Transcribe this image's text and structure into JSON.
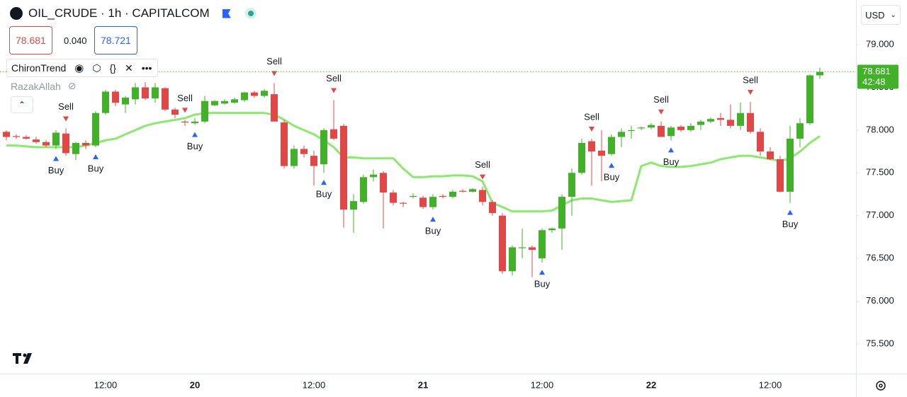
{
  "header": {
    "symbol": "OIL_CRUDE · 1h · CAPITALCOM",
    "bid": "78.681",
    "spread": "0.040",
    "ask": "78.721",
    "indicator": "ChironTrend",
    "indicator2": "RazakAllah",
    "currency": "USD",
    "countdown": "42:48"
  },
  "chart_data": {
    "type": "candlestick",
    "categories": [
      null,
      null,
      null,
      null,
      null,
      null,
      null,
      null,
      null,
      null,
      "12:00",
      null,
      null,
      null,
      null,
      null,
      null,
      null,
      null,
      "20",
      null,
      null,
      null,
      null,
      null,
      null,
      null,
      null,
      null,
      null,
      null,
      "12:00",
      null,
      null,
      null,
      null,
      null,
      null,
      null,
      null,
      null,
      null,
      "21",
      null,
      null,
      null,
      null,
      null,
      null,
      null,
      null,
      null,
      null,
      null,
      "12:00",
      null,
      null,
      null,
      null,
      null,
      null,
      null,
      null,
      null,
      null,
      "22",
      null,
      null,
      null,
      null,
      null,
      null,
      null,
      null,
      null,
      null,
      null,
      "12:00",
      null,
      null,
      null,
      null,
      null
    ],
    "ohlc": [
      [
        77.98,
        78.0,
        77.88,
        77.92
      ],
      [
        77.93,
        77.95,
        77.9,
        77.92
      ],
      [
        77.92,
        77.94,
        77.89,
        77.9
      ],
      [
        77.89,
        77.92,
        77.84,
        77.86
      ],
      [
        77.86,
        77.88,
        77.8,
        77.82
      ],
      [
        77.82,
        78.0,
        77.78,
        77.97
      ],
      [
        77.96,
        78.02,
        77.7,
        77.73
      ],
      [
        77.72,
        77.86,
        77.65,
        77.85
      ],
      [
        77.85,
        77.88,
        77.78,
        77.82
      ],
      [
        77.82,
        78.22,
        77.8,
        78.2
      ],
      [
        78.2,
        78.47,
        78.18,
        78.45
      ],
      [
        78.45,
        78.47,
        78.28,
        78.32
      ],
      [
        78.3,
        78.4,
        78.2,
        78.38
      ],
      [
        78.36,
        78.55,
        78.3,
        78.5
      ],
      [
        78.5,
        78.56,
        78.35,
        78.37
      ],
      [
        78.37,
        78.55,
        78.32,
        78.5
      ],
      [
        78.49,
        78.5,
        78.22,
        78.24
      ],
      [
        78.24,
        78.26,
        78.14,
        78.18
      ],
      [
        78.1,
        78.12,
        78.05,
        78.09
      ],
      [
        78.08,
        78.14,
        78.06,
        78.1
      ],
      [
        78.1,
        78.4,
        78.08,
        78.34
      ],
      [
        78.29,
        78.35,
        78.28,
        78.34
      ],
      [
        78.31,
        78.36,
        78.3,
        78.34
      ],
      [
        78.32,
        78.38,
        78.31,
        78.36
      ],
      [
        78.35,
        78.45,
        78.33,
        78.44
      ],
      [
        78.44,
        78.46,
        78.38,
        78.4
      ],
      [
        78.4,
        78.48,
        78.38,
        78.46
      ],
      [
        78.42,
        78.55,
        78.1,
        78.1
      ],
      [
        78.09,
        78.12,
        77.55,
        77.58
      ],
      [
        77.58,
        77.82,
        77.55,
        77.78
      ],
      [
        77.78,
        77.82,
        77.68,
        77.72
      ],
      [
        77.7,
        77.76,
        77.35,
        77.58
      ],
      [
        77.6,
        78.02,
        77.5,
        78.0
      ],
      [
        78.01,
        78.35,
        77.88,
        77.9
      ],
      [
        78.05,
        78.07,
        76.86,
        77.07
      ],
      [
        77.07,
        77.25,
        76.8,
        77.17
      ],
      [
        77.16,
        77.48,
        77.14,
        77.45
      ],
      [
        77.45,
        77.54,
        77.4,
        77.48
      ],
      [
        77.5,
        77.52,
        76.85,
        77.27
      ],
      [
        77.27,
        77.3,
        77.12,
        77.15
      ],
      [
        77.15,
        77.16,
        77.1,
        77.14
      ],
      [
        77.22,
        77.26,
        77.2,
        77.23
      ],
      [
        77.21,
        77.23,
        77.08,
        77.1
      ],
      [
        77.1,
        77.25,
        77.07,
        77.22
      ],
      [
        77.23,
        77.25,
        77.2,
        77.22
      ],
      [
        77.22,
        77.3,
        77.2,
        77.28
      ],
      [
        77.29,
        77.31,
        77.27,
        77.28
      ],
      [
        77.28,
        77.32,
        77.27,
        77.31
      ],
      [
        77.3,
        77.34,
        77.12,
        77.16
      ],
      [
        77.16,
        77.18,
        77.0,
        77.03
      ],
      [
        77.0,
        77.03,
        76.32,
        76.35
      ],
      [
        76.35,
        76.65,
        76.3,
        76.63
      ],
      [
        76.62,
        76.85,
        76.5,
        76.63
      ],
      [
        76.63,
        76.65,
        76.28,
        76.6
      ],
      [
        76.5,
        76.85,
        76.45,
        76.83
      ],
      [
        76.83,
        76.86,
        76.8,
        76.85
      ],
      [
        76.85,
        77.25,
        76.6,
        77.22
      ],
      [
        77.22,
        77.55,
        77.0,
        77.5
      ],
      [
        77.5,
        77.9,
        77.48,
        77.85
      ],
      [
        77.87,
        77.9,
        77.35,
        77.75
      ],
      [
        77.76,
        78.0,
        77.4,
        77.7
      ],
      [
        77.72,
        77.95,
        77.7,
        77.92
      ],
      [
        77.92,
        78.02,
        77.8,
        77.98
      ],
      [
        77.99,
        78.05,
        77.9,
        78.0
      ],
      [
        78.02,
        78.04,
        78.0,
        78.03
      ],
      [
        78.03,
        78.08,
        78.01,
        78.06
      ],
      [
        78.05,
        78.1,
        77.92,
        77.92
      ],
      [
        77.93,
        78.05,
        77.88,
        78.03
      ],
      [
        78.04,
        78.06,
        77.98,
        78.0
      ],
      [
        78.0,
        78.08,
        77.98,
        78.05
      ],
      [
        78.06,
        78.12,
        78.0,
        78.1
      ],
      [
        78.1,
        78.15,
        78.08,
        78.13
      ],
      [
        78.14,
        78.2,
        78.05,
        78.12
      ],
      [
        78.12,
        78.3,
        78.02,
        78.05
      ],
      [
        78.05,
        78.32,
        78.0,
        78.2
      ],
      [
        78.2,
        78.33,
        77.96,
        77.98
      ],
      [
        77.98,
        78.02,
        77.7,
        77.75
      ],
      [
        77.75,
        77.8,
        77.65,
        77.66
      ],
      [
        77.66,
        77.7,
        77.27,
        77.28
      ],
      [
        77.28,
        78.05,
        77.15,
        77.9
      ],
      [
        77.9,
        78.14,
        77.8,
        78.08
      ],
      [
        78.08,
        78.65,
        78.06,
        78.64
      ],
      [
        78.64,
        78.73,
        78.6,
        78.681
      ]
    ],
    "trend_line": [
      77.82,
      77.82,
      77.81,
      77.8,
      77.8,
      77.8,
      77.8,
      77.8,
      77.82,
      77.85,
      77.88,
      77.9,
      77.95,
      78.0,
      78.05,
      78.08,
      78.1,
      78.12,
      78.14,
      78.18,
      78.2,
      78.2,
      78.2,
      78.2,
      78.2,
      78.2,
      78.2,
      78.18,
      78.12,
      78.05,
      78.0,
      77.95,
      77.88,
      77.8,
      77.68,
      77.68,
      77.67,
      77.67,
      77.67,
      77.67,
      77.55,
      77.45,
      77.45,
      77.46,
      77.46,
      77.47,
      77.47,
      77.46,
      77.4,
      77.15,
      77.1,
      77.05,
      77.05,
      77.05,
      77.05,
      77.06,
      77.12,
      77.18,
      77.2,
      77.2,
      77.18,
      77.16,
      77.17,
      77.18,
      77.58,
      77.62,
      77.58,
      77.57,
      77.57,
      77.58,
      77.6,
      77.62,
      77.66,
      77.68,
      77.7,
      77.7,
      77.68,
      77.66,
      77.64,
      77.67,
      77.75,
      77.85,
      77.93
    ],
    "signals": [
      {
        "index": 5,
        "label": "Buy"
      },
      {
        "index": 6,
        "label": "Sell"
      },
      {
        "index": 9,
        "label": "Buy"
      },
      {
        "index": 18,
        "label": "Sell"
      },
      {
        "index": 19,
        "label": "Buy"
      },
      {
        "index": 27,
        "label": "Sell"
      },
      {
        "index": 32,
        "label": "Buy"
      },
      {
        "index": 33,
        "label": "Sell"
      },
      {
        "index": 43,
        "label": "Buy"
      },
      {
        "index": 48,
        "label": "Sell"
      },
      {
        "index": 54,
        "label": "Buy"
      },
      {
        "index": 59,
        "label": "Sell"
      },
      {
        "index": 61,
        "label": "Buy"
      },
      {
        "index": 66,
        "label": "Sell"
      },
      {
        "index": 67,
        "label": "Buy"
      },
      {
        "index": 75,
        "label": "Sell"
      },
      {
        "index": 79,
        "label": "Buy"
      }
    ],
    "last_price": 78.681,
    "ylim": [
      75.153,
      79.521
    ],
    "yticks": [
      {
        "value": 75.5,
        "label": "75.500"
      },
      {
        "value": 76,
        "label": "76.000"
      },
      {
        "value": 76.5,
        "label": "76.500"
      },
      {
        "value": 77,
        "label": "77.000"
      },
      {
        "value": 77.5,
        "label": "77.500"
      },
      {
        "value": 78,
        "label": "78.000"
      },
      {
        "value": 78.5,
        "label": "78.500"
      },
      {
        "value": 79,
        "label": "79.000"
      }
    ],
    "colors": {
      "up": "#43b02a",
      "down": "#e04848",
      "line": "#8de870",
      "buy": "#2962ff",
      "sell": "#e04848"
    }
  }
}
